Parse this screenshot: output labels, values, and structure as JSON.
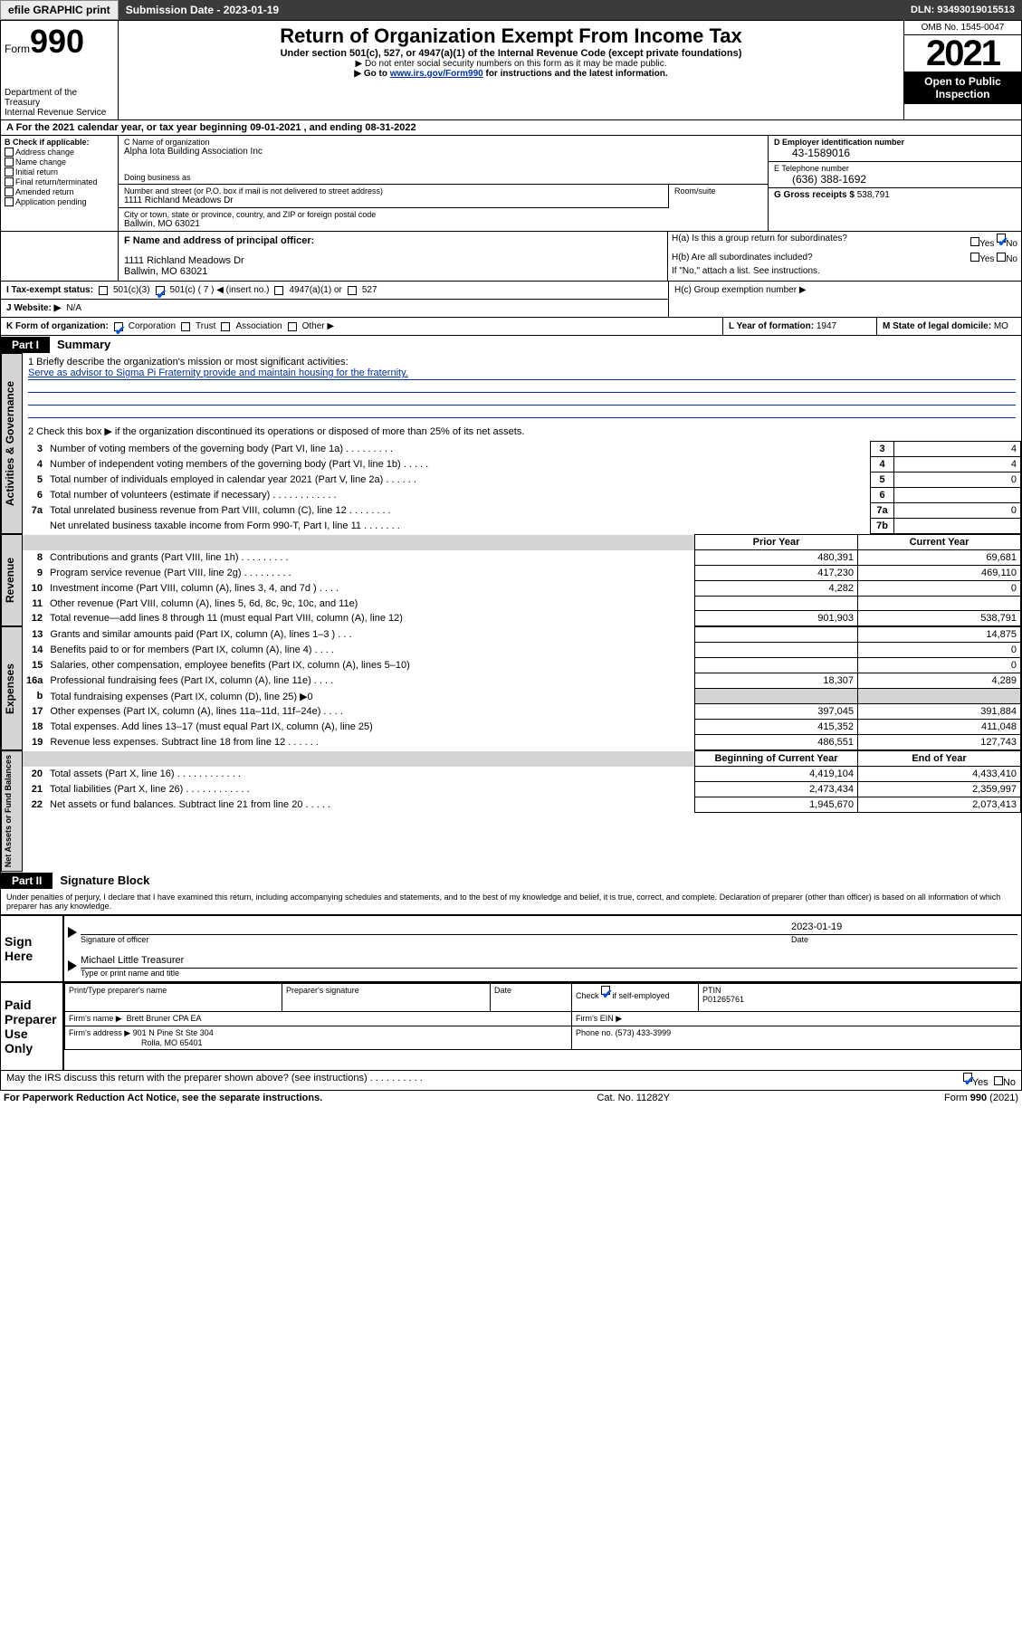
{
  "topbar": {
    "efile": "efile GRAPHIC print",
    "submission_label": "Submission Date - 2023-01-19",
    "dln": "DLN: 93493019015513"
  },
  "header": {
    "form_word": "Form",
    "form_num": "990",
    "dept": "Department of the Treasury",
    "irs": "Internal Revenue Service",
    "title": "Return of Organization Exempt From Income Tax",
    "sub": "Under section 501(c), 527, or 4947(a)(1) of the Internal Revenue Code (except private foundations)",
    "note1": "▶ Do not enter social security numbers on this form as it may be made public.",
    "note2_pre": "▶ Go to ",
    "note2_link": "www.irs.gov/Form990",
    "note2_post": " for instructions and the latest information.",
    "omb": "OMB No. 1545-0047",
    "year": "2021",
    "open": "Open to Public Inspection"
  },
  "period": {
    "a": "A For the 2021 calendar year, or tax year beginning 09-01-2021   , and ending 08-31-2022"
  },
  "colB": {
    "label": "B Check if applicable:",
    "items": [
      "Address change",
      "Name change",
      "Initial return",
      "Final return/terminated",
      "Amended return",
      "Application pending"
    ]
  },
  "colC": {
    "name_label": "C Name of organization",
    "name": "Alpha Iota Building Association Inc",
    "dba_label": "Doing business as",
    "dba": "",
    "addr_label": "Number and street (or P.O. box if mail is not delivered to street address)",
    "room_label": "Room/suite",
    "addr": "1111 Richland Meadows Dr",
    "city_label": "City or town, state or province, country, and ZIP or foreign postal code",
    "city": "Ballwin, MO  63021",
    "f_label": "F Name and address of principal officer:",
    "f_addr1": "1111 Richland Meadows Dr",
    "f_addr2": "Ballwin, MO  63021"
  },
  "colDE": {
    "d_label": "D Employer identification number",
    "ein": "43-1589016",
    "e_label": "E Telephone number",
    "phone": "(636) 388-1692",
    "g_label": "G Gross receipts $",
    "gross": "538,791"
  },
  "h": {
    "ha": "H(a)  Is this a group return for subordinates?",
    "hb": "H(b)  Are all subordinates included?",
    "hb_note": "If \"No,\" attach a list. See instructions.",
    "hc": "H(c)  Group exemption number ▶",
    "yes": "Yes",
    "no": "No"
  },
  "i": {
    "label": "I   Tax-exempt status:",
    "c3": "501(c)(3)",
    "c": "501(c) ( 7 ) ◀ (insert no.)",
    "a1": "4947(a)(1) or",
    "s527": "527"
  },
  "j": {
    "label": "J   Website: ▶",
    "val": "N/A"
  },
  "k": {
    "label": "K Form of organization:",
    "corp": "Corporation",
    "trust": "Trust",
    "assoc": "Association",
    "other": "Other ▶"
  },
  "lm": {
    "l_label": "L Year of formation:",
    "l_val": "1947",
    "m_label": "M State of legal domicile:",
    "m_val": "MO"
  },
  "part1": {
    "label": "Part I",
    "title": "Summary",
    "line1_label": "1   Briefly describe the organization's mission or most significant activities:",
    "line1_val": "Serve as advisor to Sigma Pi Fraternity provide and maintain housing for the fraternity.",
    "line2": "2   Check this box ▶        if the organization discontinued its operations or disposed of more than 25% of its net assets.",
    "lines_gov": [
      {
        "n": "3",
        "label": "Number of voting members of the governing body (Part VI, line 1a)   .    .    .    .    .    .    .    .    .",
        "box": "3",
        "val": "4"
      },
      {
        "n": "4",
        "label": "Number of independent voting members of the governing body (Part VI, line 1b)   .    .    .    .    .",
        "box": "4",
        "val": "4"
      },
      {
        "n": "5",
        "label": "Total number of individuals employed in calendar year 2021 (Part V, line 2a)   .    .    .    .    .    .",
        "box": "5",
        "val": "0"
      },
      {
        "n": "6",
        "label": "Total number of volunteers (estimate if necessary)   .    .    .    .    .    .    .    .    .    .    .    .",
        "box": "6",
        "val": ""
      },
      {
        "n": "7a",
        "label": "Total unrelated business revenue from Part VIII, column (C), line 12   .    .    .    .    .    .    .    .",
        "box": "7a",
        "val": "0"
      },
      {
        "n": "",
        "label": "Net unrelated business taxable income from Form 990-T, Part I, line 11   .    .    .    .    .    .    .",
        "box": "7b",
        "val": ""
      }
    ],
    "col_prior": "Prior Year",
    "col_curr": "Current Year",
    "rev": [
      {
        "n": "8",
        "label": "Contributions and grants (Part VIII, line 1h)   .    .    .    .    .    .    .    .    .",
        "prior": "480,391",
        "curr": "69,681"
      },
      {
        "n": "9",
        "label": "Program service revenue (Part VIII, line 2g)   .    .    .    .    .    .    .    .    .",
        "prior": "417,230",
        "curr": "469,110"
      },
      {
        "n": "10",
        "label": "Investment income (Part VIII, column (A), lines 3, 4, and 7d )   .    .    .    .",
        "prior": "4,282",
        "curr": "0"
      },
      {
        "n": "11",
        "label": "Other revenue (Part VIII, column (A), lines 5, 6d, 8c, 9c, 10c, and 11e)",
        "prior": "",
        "curr": ""
      },
      {
        "n": "12",
        "label": "Total revenue—add lines 8 through 11 (must equal Part VIII, column (A), line 12)",
        "prior": "901,903",
        "curr": "538,791"
      }
    ],
    "exp": [
      {
        "n": "13",
        "label": "Grants and similar amounts paid (Part IX, column (A), lines 1–3 )   .    .    .",
        "prior": "",
        "curr": "14,875"
      },
      {
        "n": "14",
        "label": "Benefits paid to or for members (Part IX, column (A), line 4)   .    .    .    .",
        "prior": "",
        "curr": "0"
      },
      {
        "n": "15",
        "label": "Salaries, other compensation, employee benefits (Part IX, column (A), lines 5–10)",
        "prior": "",
        "curr": "0"
      },
      {
        "n": "16a",
        "label": "Professional fundraising fees (Part IX, column (A), line 11e)   .    .    .    .",
        "prior": "18,307",
        "curr": "4,289"
      },
      {
        "n": "b",
        "label": "Total fundraising expenses (Part IX, column (D), line 25) ▶0",
        "prior": "GREY",
        "curr": "GREY"
      },
      {
        "n": "17",
        "label": "Other expenses (Part IX, column (A), lines 11a–11d, 11f–24e)   .    .    .    .",
        "prior": "397,045",
        "curr": "391,884"
      },
      {
        "n": "18",
        "label": "Total expenses. Add lines 13–17 (must equal Part IX, column (A), line 25)",
        "prior": "415,352",
        "curr": "411,048"
      },
      {
        "n": "19",
        "label": "Revenue less expenses. Subtract line 18 from line 12   .    .    .    .    .    .",
        "prior": "486,551",
        "curr": "127,743"
      }
    ],
    "col_begin": "Beginning of Current Year",
    "col_end": "End of Year",
    "net": [
      {
        "n": "20",
        "label": "Total assets (Part X, line 16)   .    .    .    .    .    .    .    .    .    .    .    .",
        "prior": "4,419,104",
        "curr": "4,433,410"
      },
      {
        "n": "21",
        "label": "Total liabilities (Part X, line 26)   .    .    .    .    .    .    .    .    .    .    .    .",
        "prior": "2,473,434",
        "curr": "2,359,997"
      },
      {
        "n": "22",
        "label": "Net assets or fund balances. Subtract line 21 from line 20   .    .    .    .    .",
        "prior": "1,945,670",
        "curr": "2,073,413"
      }
    ]
  },
  "part2": {
    "label": "Part II",
    "title": "Signature Block",
    "decl": "Under penalties of perjury, I declare that I have examined this return, including accompanying schedules and statements, and to the best of my knowledge and belief, it is true, correct, and complete. Declaration of preparer (other than officer) is based on all information of which preparer has any knowledge."
  },
  "sign": {
    "here": "Sign Here",
    "sig_label": "Signature of officer",
    "date_label": "Date",
    "date": "2023-01-19",
    "name": "Michael Little  Treasurer",
    "name_label": "Type or print name and title"
  },
  "paid": {
    "label": "Paid Preparer Use Only",
    "print_label": "Print/Type preparer's name",
    "sig_label": "Preparer's signature",
    "date_label": "Date",
    "check_label": "Check",
    "self_emp": "if self-employed",
    "ptin_label": "PTIN",
    "ptin": "P01265761",
    "firm_name_label": "Firm's name    ▶",
    "firm_name": "Brett Bruner CPA EA",
    "firm_ein_label": "Firm's EIN ▶",
    "firm_addr_label": "Firm's address ▶",
    "firm_addr1": "901 N Pine St Ste 304",
    "firm_addr2": "Rolla, MO  65401",
    "phone_label": "Phone no.",
    "phone": "(573) 433-3999"
  },
  "footer": {
    "discuss": "May the IRS discuss this return with the preparer shown above? (see instructions)   .    .    .    .    .    .    .    .    .    .",
    "yes": "Yes",
    "no": "No",
    "pra": "For Paperwork Reduction Act Notice, see the separate instructions.",
    "cat": "Cat. No. 11282Y",
    "form": "Form 990 (2021)"
  }
}
